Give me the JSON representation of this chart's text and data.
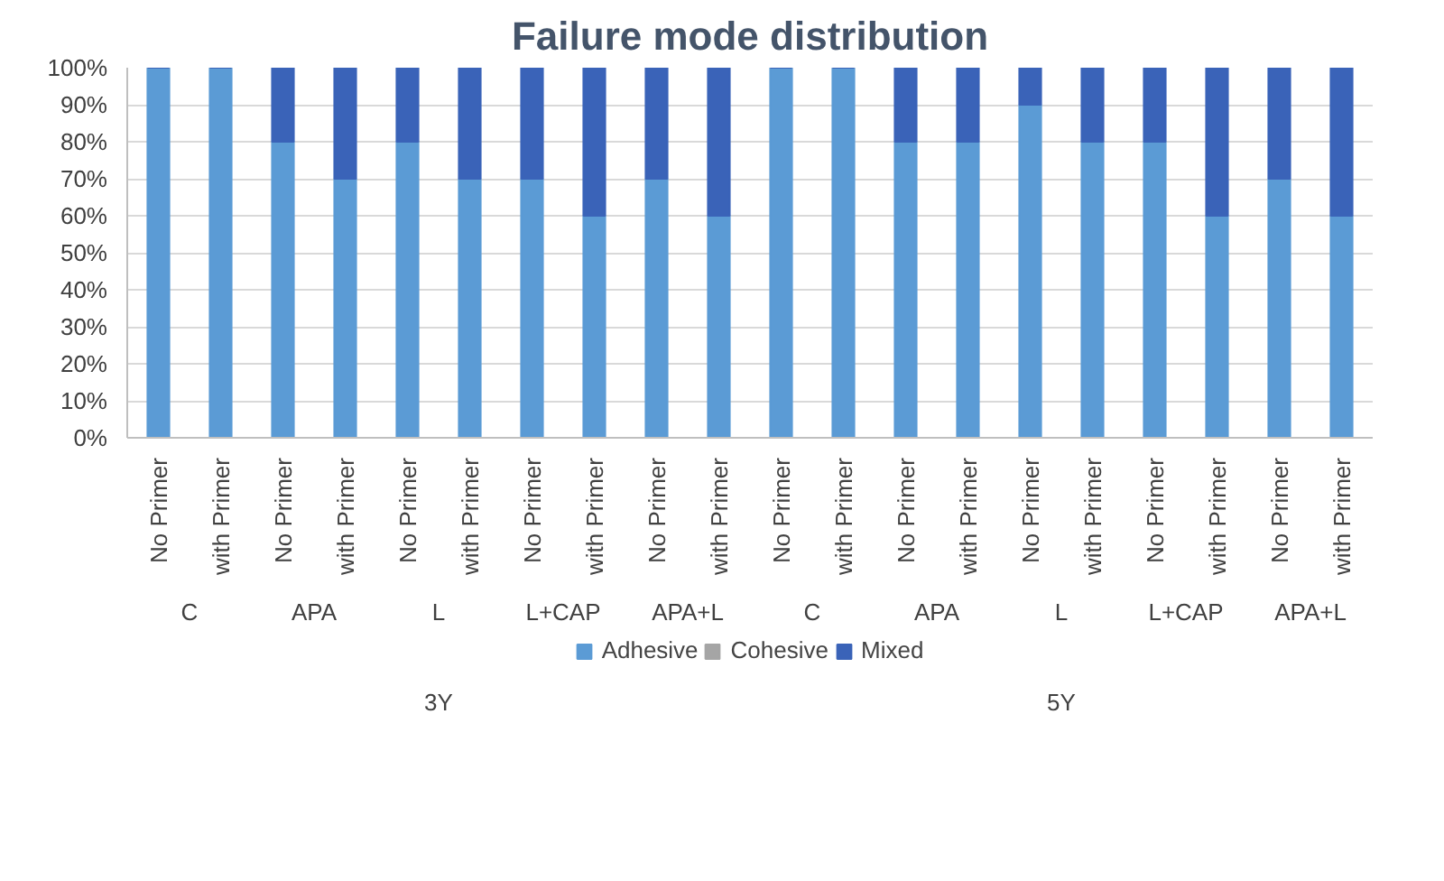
{
  "chart_data": {
    "type": "bar",
    "stacked": true,
    "title": "Failure mode distribution",
    "categories": [
      "No Primer",
      "with Primer",
      "No Primer",
      "with Primer",
      "No Primer",
      "with Primer",
      "No Primer",
      "with Primer",
      "No Primer",
      "with Primer",
      "No Primer",
      "with Primer",
      "No Primer",
      "with Primer",
      "No Primer",
      "with Primer",
      "No Primer",
      "with Primer",
      "No Primer",
      "with Primer"
    ],
    "series": [
      {
        "name": "Adhesive",
        "color": "#5b9bd5",
        "values": [
          100,
          100,
          80,
          70,
          80,
          70,
          70,
          60,
          70,
          60,
          100,
          100,
          80,
          80,
          90,
          80,
          80,
          60,
          70,
          60
        ]
      },
      {
        "name": "Cohesive",
        "color": "#a5a5a5",
        "values": [
          0,
          0,
          0,
          0,
          0,
          0,
          0,
          0,
          0,
          0,
          0,
          0,
          0,
          0,
          0,
          0,
          0,
          0,
          0,
          0
        ]
      },
      {
        "name": "Mixed",
        "color": "#3a63b8",
        "values": [
          0,
          0,
          20,
          30,
          20,
          30,
          30,
          40,
          30,
          40,
          0,
          0,
          20,
          20,
          10,
          20,
          20,
          40,
          30,
          40
        ]
      }
    ],
    "ylim": [
      0,
      100
    ],
    "yticks": [
      {
        "value": 0,
        "label": "0%"
      },
      {
        "value": 10,
        "label": "10%"
      },
      {
        "value": 20,
        "label": "20%"
      },
      {
        "value": 30,
        "label": "30%"
      },
      {
        "value": 40,
        "label": "40%"
      },
      {
        "value": 50,
        "label": "50%"
      },
      {
        "value": 60,
        "label": "60%"
      },
      {
        "value": 70,
        "label": "70%"
      },
      {
        "value": 80,
        "label": "80%"
      },
      {
        "value": 90,
        "label": "90%"
      },
      {
        "value": 100,
        "label": "100%"
      }
    ],
    "annotations": [
      "C",
      "APA",
      "L",
      "L+CAP",
      "APA+L",
      "C",
      "APA",
      "L",
      "L+CAP",
      "APA+L",
      "3Y",
      "5Y"
    ],
    "grid": "y",
    "legend": "bottom"
  }
}
